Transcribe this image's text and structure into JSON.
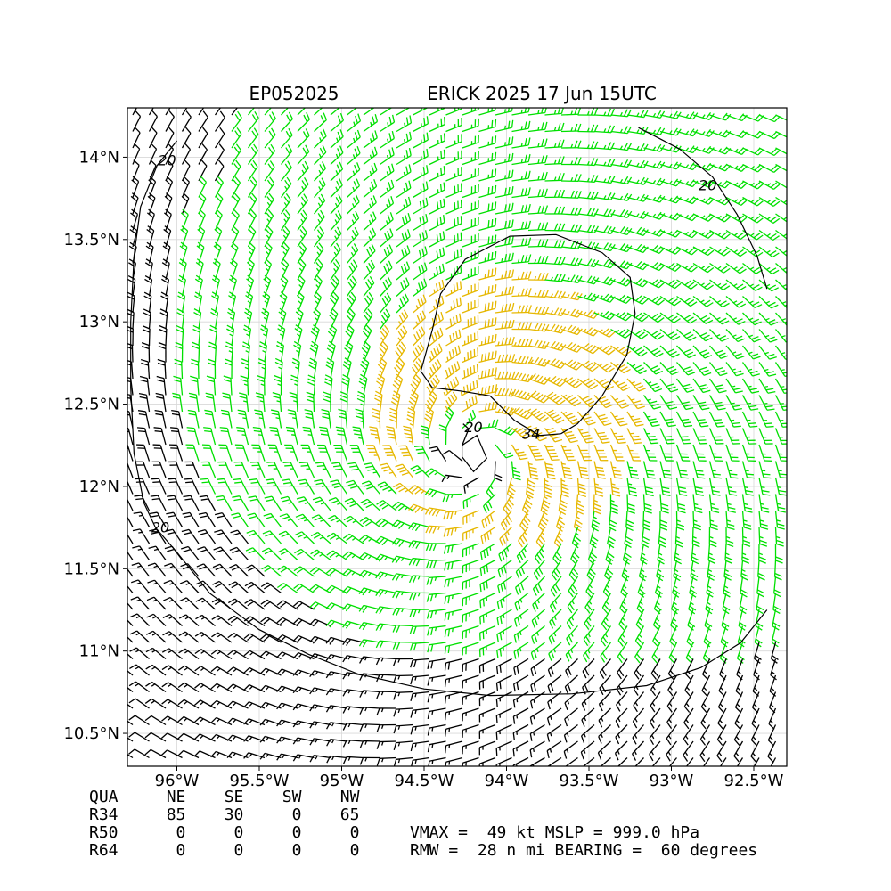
{
  "chart_data": {
    "type": "wind-barb-map",
    "title_left": "EP052025",
    "title_right": "ERICK 2025 17 Jun 15UTC",
    "xlim": [
      -96.3,
      -92.3
    ],
    "ylim": [
      10.3,
      14.3
    ],
    "x_ticks": [
      {
        "value": -96.0,
        "label": "96°W"
      },
      {
        "value": -95.5,
        "label": "95.5°W"
      },
      {
        "value": -95.0,
        "label": "95°W"
      },
      {
        "value": -94.5,
        "label": "94.5°W"
      },
      {
        "value": -94.0,
        "label": "94°W"
      },
      {
        "value": -93.5,
        "label": "93.5°W"
      },
      {
        "value": -93.0,
        "label": "93°W"
      },
      {
        "value": -92.5,
        "label": "92.5°W"
      }
    ],
    "y_ticks": [
      {
        "value": 10.5,
        "label": "10.5°N"
      },
      {
        "value": 11.0,
        "label": "11°N"
      },
      {
        "value": 11.5,
        "label": "11.5°N"
      },
      {
        "value": 12.0,
        "label": "12°N"
      },
      {
        "value": 12.5,
        "label": "12.5°N"
      },
      {
        "value": 13.0,
        "label": "13°N"
      },
      {
        "value": 13.5,
        "label": "13.5°N"
      },
      {
        "value": 14.0,
        "label": "14°N"
      }
    ],
    "grid": true,
    "storm_center": {
      "lon": -94.2,
      "lat": 12.2
    },
    "barb_colors": {
      "below_20kt": "#000000",
      "20_to_34kt": "#00e000",
      "34_to_50kt": "#e6b800"
    },
    "contours": [
      {
        "level": "20",
        "points": [
          [
            -94.27,
            12.18
          ],
          [
            -94.2,
            12.09
          ],
          [
            -94.12,
            12.17
          ],
          [
            -94.18,
            12.31
          ],
          [
            -94.27,
            12.25
          ],
          [
            -94.27,
            12.18
          ]
        ]
      },
      {
        "level": "34",
        "points": [
          [
            -93.67,
            12.32
          ],
          [
            -93.8,
            12.31
          ],
          [
            -93.95,
            12.4
          ],
          [
            -94.1,
            12.55
          ],
          [
            -94.28,
            12.58
          ],
          [
            -94.45,
            12.6
          ],
          [
            -94.52,
            12.7
          ],
          [
            -94.45,
            12.95
          ],
          [
            -94.4,
            13.17
          ],
          [
            -94.25,
            13.38
          ],
          [
            -93.98,
            13.52
          ],
          [
            -93.7,
            13.53
          ],
          [
            -93.42,
            13.42
          ],
          [
            -93.25,
            13.27
          ],
          [
            -93.22,
            13.05
          ],
          [
            -93.27,
            12.8
          ],
          [
            -93.42,
            12.55
          ],
          [
            -93.57,
            12.38
          ],
          [
            -93.67,
            12.32
          ]
        ]
      },
      {
        "level": "20",
        "points": [
          [
            -96.0,
            14.1
          ],
          [
            -96.12,
            13.95
          ],
          [
            -96.22,
            13.7
          ],
          [
            -96.26,
            13.4
          ],
          [
            -96.28,
            13.0
          ],
          [
            -96.28,
            12.6
          ],
          [
            -96.26,
            12.2
          ],
          [
            -96.2,
            11.9
          ],
          [
            -96.13,
            11.75
          ],
          [
            -96.0,
            11.6
          ],
          [
            -95.8,
            11.35
          ],
          [
            -95.5,
            11.13
          ],
          [
            -95.2,
            10.98
          ],
          [
            -94.9,
            10.86
          ],
          [
            -94.5,
            10.77
          ],
          [
            -94.1,
            10.73
          ],
          [
            -93.6,
            10.74
          ],
          [
            -93.15,
            10.79
          ],
          [
            -92.82,
            10.9
          ],
          [
            -92.58,
            11.05
          ],
          [
            -92.42,
            11.25
          ]
        ]
      },
      {
        "level": "20",
        "points": [
          [
            -93.2,
            14.18
          ],
          [
            -92.95,
            14.05
          ],
          [
            -92.75,
            13.88
          ],
          [
            -92.6,
            13.65
          ],
          [
            -92.48,
            13.4
          ],
          [
            -92.42,
            13.2
          ]
        ]
      }
    ],
    "contour_labels": [
      {
        "text": "20",
        "lon": -94.2,
        "lat": 12.33
      },
      {
        "text": "34",
        "lon": -93.85,
        "lat": 12.29
      },
      {
        "text": "20",
        "lon": -96.06,
        "lat": 13.95
      },
      {
        "text": "20",
        "lon": -92.78,
        "lat": 13.8
      },
      {
        "text": "20",
        "lon": -96.1,
        "lat": 11.72
      }
    ]
  },
  "table": {
    "header": "QUA     NE    SE    SW    NW",
    "rows": [
      "R34     85    30     0    65",
      "R50      0     0     0     0",
      "R64      0     0     0     0"
    ],
    "summary": [
      "VMAX =  49 kt MSLP = 999.0 hPa",
      "RMW =  28 n mi BEARING =  60 degrees"
    ]
  }
}
